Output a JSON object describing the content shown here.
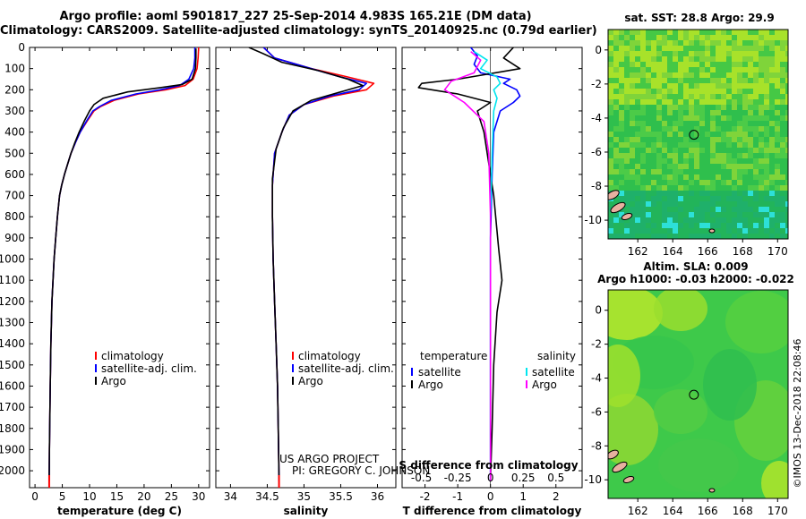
{
  "header": {
    "title_line1": "Argo profile: aoml 5901817_227 25-Sep-2014 4.983S 165.21E (DM data)",
    "title_line2": "Climatology: CARS2009. Satellite-adjusted climatology: synTS_20140925.nc (0.79d earlier)"
  },
  "credits": {
    "line1": "US ARGO PROJECT",
    "line2": "PI: GREGORY C. JOHNSON"
  },
  "watermark": "©IMOS 13-Dec-2018 22:08:46",
  "chart_data": [
    {
      "type": "line",
      "id": "temperature",
      "xlabel": "temperature (deg C)",
      "ylabel": "",
      "xlim": [
        -1,
        32
      ],
      "ylim": [
        2080,
        0
      ],
      "xticks": [
        0,
        5,
        10,
        15,
        20,
        25,
        30
      ],
      "yticks": [
        0,
        100,
        200,
        300,
        400,
        500,
        600,
        700,
        800,
        900,
        1000,
        1100,
        1200,
        1300,
        1400,
        1500,
        1600,
        1700,
        1800,
        1900,
        2000
      ],
      "legend": [
        "climatology",
        "satellite-adj. clim.",
        "Argo"
      ],
      "legend_colors": [
        "#ff0000",
        "#0000ff",
        "#000000"
      ],
      "series": [
        {
          "name": "climatology",
          "color": "#ff0000",
          "x": [
            30.0,
            29.9,
            29.7,
            29.0,
            27.5,
            24.0,
            19.0,
            14.5,
            12.0,
            10.8,
            9.5,
            8.3,
            7.4,
            6.6,
            6.0,
            5.4,
            4.9,
            4.5,
            4.1,
            3.8,
            3.5,
            3.3,
            3.1,
            2.9,
            2.8,
            2.65,
            2.6
          ],
          "y": [
            0,
            50,
            100,
            150,
            180,
            200,
            220,
            250,
            280,
            300,
            350,
            400,
            450,
            500,
            550,
            600,
            650,
            700,
            800,
            900,
            1000,
            1100,
            1200,
            1400,
            1600,
            1900,
            2050
          ]
        },
        {
          "name": "satellite-adj. clim.",
          "color": "#0000ff",
          "x": [
            29.3,
            29.3,
            29.1,
            28.2,
            26.5,
            23.0,
            18.5,
            14.0,
            11.8,
            10.6,
            9.4,
            8.3,
            7.4,
            6.6,
            6.0,
            5.4,
            4.9,
            4.5,
            4.1,
            3.8,
            3.5,
            3.3,
            3.1,
            2.9,
            2.8,
            2.65,
            2.6
          ],
          "y": [
            0,
            50,
            100,
            150,
            180,
            200,
            220,
            250,
            280,
            300,
            350,
            400,
            450,
            500,
            550,
            600,
            650,
            700,
            800,
            900,
            1000,
            1100,
            1200,
            1400,
            1600,
            1900,
            2050
          ]
        },
        {
          "name": "Argo",
          "color": "#000000",
          "x": [
            29.5,
            29.5,
            29.4,
            28.8,
            27.0,
            23.0,
            17.0,
            12.5,
            10.8,
            10.0,
            9.0,
            8.1,
            7.3,
            6.6,
            6.0,
            5.4,
            4.9,
            4.5,
            4.1,
            3.8,
            3.5,
            3.3,
            3.1,
            2.9,
            2.8,
            2.65,
            2.6
          ],
          "y": [
            5,
            50,
            100,
            150,
            175,
            190,
            210,
            240,
            270,
            300,
            350,
            400,
            450,
            500,
            550,
            600,
            650,
            700,
            800,
            900,
            1000,
            1100,
            1200,
            1400,
            1600,
            1900,
            2040
          ]
        }
      ]
    },
    {
      "type": "line",
      "id": "salinity",
      "xlabel": "salinity",
      "ylabel": "",
      "xlim": [
        33.8,
        36.25
      ],
      "ylim": [
        2080,
        0
      ],
      "xticks": [
        34,
        34.5,
        35,
        35.5,
        36
      ],
      "xticklabels": [
        "34",
        "34.5",
        "35",
        "35.5",
        "36"
      ],
      "legend": [
        "climatology",
        "satellite-adj. clim.",
        "Argo"
      ],
      "legend_colors": [
        "#ff0000",
        "#0000ff",
        "#000000"
      ],
      "series": [
        {
          "name": "climatology",
          "color": "#ff0000",
          "x": [
            34.45,
            34.6,
            35.1,
            35.6,
            35.95,
            35.85,
            35.4,
            35.0,
            34.8,
            34.7,
            34.6,
            34.57,
            34.57,
            34.58,
            34.6,
            34.62,
            34.64,
            34.65,
            34.66
          ],
          "y": [
            0,
            50,
            100,
            140,
            170,
            200,
            230,
            270,
            320,
            400,
            500,
            650,
            800,
            1000,
            1200,
            1400,
            1600,
            1800,
            2050
          ]
        },
        {
          "name": "satellite-adj. clim.",
          "color": "#0000ff",
          "x": [
            34.45,
            34.6,
            35.1,
            35.5,
            35.85,
            35.75,
            35.35,
            35.0,
            34.8,
            34.7,
            34.6,
            34.57,
            34.57,
            34.58,
            34.6,
            34.62,
            34.64,
            34.65,
            34.66
          ],
          "y": [
            0,
            50,
            100,
            140,
            170,
            200,
            230,
            270,
            320,
            400,
            500,
            650,
            800,
            1000,
            1200,
            1400,
            1600,
            1800,
            2050
          ]
        },
        {
          "name": "Argo",
          "color": "#000000",
          "x": [
            34.25,
            34.45,
            34.7,
            35.2,
            35.6,
            35.8,
            35.5,
            35.1,
            34.85,
            34.72,
            34.62,
            34.57,
            34.57,
            34.58,
            34.6,
            34.62,
            34.64,
            34.65,
            34.66
          ],
          "y": [
            0,
            30,
            70,
            110,
            150,
            180,
            210,
            250,
            300,
            380,
            480,
            620,
            800,
            1000,
            1200,
            1400,
            1600,
            1800,
            2040
          ]
        }
      ]
    },
    {
      "type": "line",
      "id": "difference",
      "xlabel": "T difference from climatology",
      "xlabel_top": "S difference from climatology",
      "ylabel": "",
      "xlim": [
        -2.7,
        2.8
      ],
      "ylim": [
        2080,
        0
      ],
      "xticks": [
        -2,
        -1,
        0,
        1,
        2
      ],
      "xticklabels_top": [
        "-0.5",
        "-0.25",
        "0",
        "0.25",
        "0.5"
      ],
      "legend_left_heading": "temperature",
      "legend_right_heading": "salinity",
      "legend_left": [
        "satellite",
        "Argo"
      ],
      "legend_left_colors": [
        "#0000ff",
        "#000000"
      ],
      "legend_right": [
        "satellite",
        "Argo"
      ],
      "legend_right_colors": [
        "#00e5ee",
        "#ff00ff"
      ],
      "series": [
        {
          "name": "temperature satellite",
          "color": "#0000ff",
          "x": [
            -0.6,
            -0.4,
            -0.5,
            -0.3,
            0.6,
            0.4,
            0.8,
            0.9,
            0.7,
            0.3,
            0.1,
            0.05,
            0.0,
            0.0,
            0.0,
            0.0
          ],
          "y": [
            0,
            40,
            80,
            120,
            150,
            170,
            200,
            230,
            260,
            300,
            400,
            600,
            900,
            1200,
            1600,
            2050
          ]
        },
        {
          "name": "temperature Argo",
          "color": "#000000",
          "x": [
            0.7,
            0.4,
            0.9,
            -1.0,
            -2.1,
            -2.2,
            -1.0,
            0.0,
            -0.4,
            -0.2,
            0.1,
            0.25,
            0.35,
            0.2,
            0.1,
            0.05,
            0.0
          ],
          "y": [
            0,
            50,
            100,
            150,
            170,
            190,
            220,
            260,
            300,
            400,
            700,
            950,
            1100,
            1250,
            1500,
            1800,
            2040
          ]
        },
        {
          "name": "salinity satellite",
          "color": "#00e5ee",
          "x": [
            -0.5,
            -0.1,
            -0.3,
            0.2,
            0.3,
            0.1,
            0.2,
            0.1,
            0.05,
            0.0,
            0.0,
            0.0
          ],
          "y": [
            20,
            60,
            100,
            140,
            170,
            200,
            240,
            300,
            500,
            800,
            1400,
            2050
          ]
        },
        {
          "name": "salinity Argo",
          "color": "#ff00ff",
          "x": [
            -0.6,
            -0.3,
            -0.5,
            -1.2,
            -1.4,
            -0.8,
            -0.2,
            -0.05,
            0.0,
            0.0
          ],
          "y": [
            20,
            60,
            120,
            160,
            200,
            260,
            350,
            500,
            800,
            2050
          ]
        }
      ]
    },
    {
      "type": "heatmap",
      "id": "sst-map",
      "title": "sat. SST: 28.8 Argo: 29.9",
      "xticks": [
        162,
        164,
        166,
        168,
        170
      ],
      "yticks": [
        0,
        -2,
        -4,
        -6,
        -8,
        -10
      ],
      "xlim": [
        160.3,
        170.6
      ],
      "ylim": [
        -11.1,
        1.2
      ],
      "marker": {
        "lon": 165.21,
        "lat": -4.983
      }
    },
    {
      "type": "heatmap",
      "id": "sla-map",
      "title": "Altim. SLA: 0.009",
      "subtitle": "Argo h1000: -0.03 h2000: -0.022",
      "xticks": [
        162,
        164,
        166,
        168,
        170
      ],
      "yticks": [
        0,
        -2,
        -4,
        -6,
        -8,
        -10
      ],
      "xlim": [
        160.3,
        170.6
      ],
      "ylim": [
        -11.1,
        1.2
      ],
      "marker": {
        "lon": 165.21,
        "lat": -4.983
      }
    }
  ]
}
